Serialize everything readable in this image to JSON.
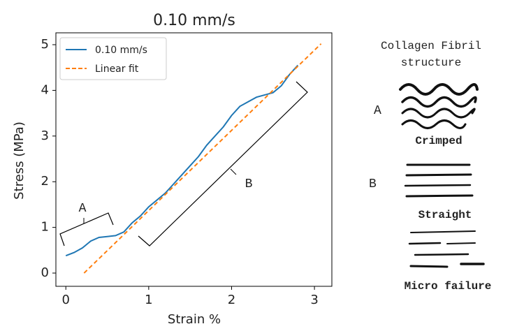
{
  "chart_data": {
    "type": "line",
    "title": "0.10 mm/s",
    "xlabel": "Strain %",
    "ylabel": "Stress (MPa)",
    "xlim": [
      -0.12,
      3.21
    ],
    "ylim": [
      -0.29,
      5.26
    ],
    "xticks": [
      0,
      1,
      2,
      3
    ],
    "yticks": [
      0,
      1,
      2,
      3,
      4,
      5
    ],
    "legend": "upper left",
    "series": [
      {
        "name": "0.10 mm/s",
        "color": "#1f77b4",
        "style": "solid",
        "x": [
          0,
          0.1,
          0.2,
          0.3,
          0.4,
          0.5,
          0.6,
          0.7,
          0.8,
          0.9,
          1.0,
          1.1,
          1.2,
          1.3,
          1.4,
          1.5,
          1.6,
          1.7,
          1.8,
          1.9,
          2.0,
          2.1,
          2.2,
          2.3,
          2.4,
          2.5,
          2.6,
          2.7,
          2.8
        ],
        "values": [
          0.38,
          0.45,
          0.55,
          0.7,
          0.78,
          0.8,
          0.82,
          0.9,
          1.1,
          1.25,
          1.45,
          1.6,
          1.75,
          1.95,
          2.15,
          2.35,
          2.55,
          2.8,
          3.0,
          3.2,
          3.45,
          3.65,
          3.75,
          3.85,
          3.9,
          3.95,
          4.1,
          4.35,
          4.55
        ]
      },
      {
        "name": "Linear fit",
        "color": "#ff7f0e",
        "style": "dashed",
        "x": [
          0.22,
          3.08
        ],
        "values": [
          0,
          5.02
        ]
      }
    ],
    "annotations": [
      "A",
      "B"
    ]
  },
  "fibril_panel": {
    "title_lines": [
      "Collagen Fibril",
      "structure"
    ],
    "rows": [
      {
        "letter": "A",
        "label": "Crimped"
      },
      {
        "letter": "B",
        "label": "Straight"
      },
      {
        "letter": null,
        "label": "Micro failure"
      }
    ]
  }
}
